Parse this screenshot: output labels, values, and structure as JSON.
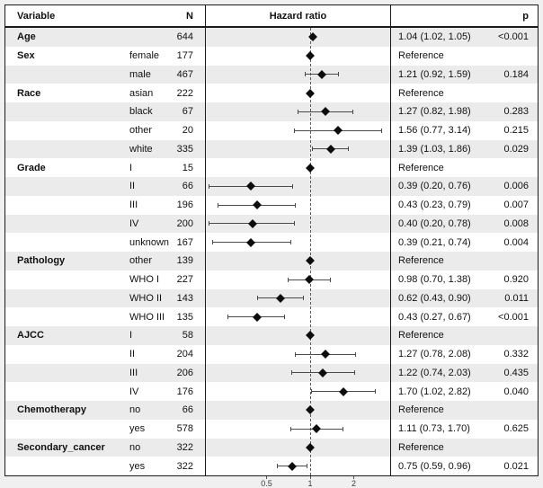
{
  "figure": {
    "background_color": "#f0f0f0",
    "stripe_color": "#ebebeb",
    "border_color": "#1a1a1a",
    "marker_color": "#0d0d0d",
    "whisker_color": "#4a4a4a",
    "refline_color": "#5a5a5a"
  },
  "table": {
    "headers": {
      "variable": "Variable",
      "n": "N",
      "hazard_ratio": "Hazard ratio",
      "p": "p"
    }
  },
  "chart_data": {
    "type": "scatter",
    "variant": "forest-plot",
    "title": "Hazard ratio",
    "x_scale": "log2",
    "x_ticks": [
      "0.5",
      "1",
      "2"
    ],
    "x_tick_values": [
      0.5,
      1,
      2
    ],
    "x_range": [
      0.19,
      3.5
    ],
    "reference_line_x": 1,
    "grid": false,
    "rows": [
      {
        "variable": "Age",
        "subgroup": "",
        "n": "644",
        "hr": 1.04,
        "ci_low": 1.02,
        "ci_high": 1.05,
        "hr_text": "1.04 (1.02, 1.05)",
        "p_text": "<0.001",
        "reference": false
      },
      {
        "variable": "Sex",
        "subgroup": "female",
        "n": "177",
        "hr": 1.0,
        "ci_low": null,
        "ci_high": null,
        "hr_text": "Reference",
        "p_text": "",
        "reference": true
      },
      {
        "variable": "",
        "subgroup": "male",
        "n": "467",
        "hr": 1.21,
        "ci_low": 0.92,
        "ci_high": 1.59,
        "hr_text": "1.21 (0.92, 1.59)",
        "p_text": "0.184",
        "reference": false
      },
      {
        "variable": "Race",
        "subgroup": "asian",
        "n": "222",
        "hr": 1.0,
        "ci_low": null,
        "ci_high": null,
        "hr_text": "Reference",
        "p_text": "",
        "reference": true
      },
      {
        "variable": "",
        "subgroup": "black",
        "n": "67",
        "hr": 1.27,
        "ci_low": 0.82,
        "ci_high": 1.98,
        "hr_text": "1.27 (0.82, 1.98)",
        "p_text": "0.283",
        "reference": false
      },
      {
        "variable": "",
        "subgroup": "other",
        "n": "20",
        "hr": 1.56,
        "ci_low": 0.77,
        "ci_high": 3.14,
        "hr_text": "1.56 (0.77, 3.14)",
        "p_text": "0.215",
        "reference": false
      },
      {
        "variable": "",
        "subgroup": "white",
        "n": "335",
        "hr": 1.39,
        "ci_low": 1.03,
        "ci_high": 1.86,
        "hr_text": "1.39 (1.03, 1.86)",
        "p_text": "0.029",
        "reference": false
      },
      {
        "variable": "Grade",
        "subgroup": "I",
        "n": "15",
        "hr": 1.0,
        "ci_low": null,
        "ci_high": null,
        "hr_text": "Reference",
        "p_text": "",
        "reference": true
      },
      {
        "variable": "",
        "subgroup": "II",
        "n": "66",
        "hr": 0.39,
        "ci_low": 0.2,
        "ci_high": 0.76,
        "hr_text": "0.39 (0.20, 0.76)",
        "p_text": "0.006",
        "reference": false
      },
      {
        "variable": "",
        "subgroup": "III",
        "n": "196",
        "hr": 0.43,
        "ci_low": 0.23,
        "ci_high": 0.79,
        "hr_text": "0.43 (0.23, 0.79)",
        "p_text": "0.007",
        "reference": false
      },
      {
        "variable": "",
        "subgroup": "IV",
        "n": "200",
        "hr": 0.4,
        "ci_low": 0.2,
        "ci_high": 0.78,
        "hr_text": "0.40 (0.20, 0.78)",
        "p_text": "0.008",
        "reference": false
      },
      {
        "variable": "",
        "subgroup": "unknown",
        "n": "167",
        "hr": 0.39,
        "ci_low": 0.21,
        "ci_high": 0.74,
        "hr_text": "0.39 (0.21, 0.74)",
        "p_text": "0.004",
        "reference": false
      },
      {
        "variable": "Pathology",
        "subgroup": "other",
        "n": "139",
        "hr": 1.0,
        "ci_low": null,
        "ci_high": null,
        "hr_text": "Reference",
        "p_text": "",
        "reference": true
      },
      {
        "variable": "",
        "subgroup": "WHO I",
        "n": "227",
        "hr": 0.98,
        "ci_low": 0.7,
        "ci_high": 1.38,
        "hr_text": "0.98 (0.70, 1.38)",
        "p_text": "0.920",
        "reference": false
      },
      {
        "variable": "",
        "subgroup": "WHO II",
        "n": "143",
        "hr": 0.62,
        "ci_low": 0.43,
        "ci_high": 0.9,
        "hr_text": "0.62 (0.43, 0.90)",
        "p_text": "0.011",
        "reference": false
      },
      {
        "variable": "",
        "subgroup": "WHO III",
        "n": "135",
        "hr": 0.43,
        "ci_low": 0.27,
        "ci_high": 0.67,
        "hr_text": "0.43 (0.27, 0.67)",
        "p_text": "<0.001",
        "reference": false
      },
      {
        "variable": "AJCC",
        "subgroup": "I",
        "n": "58",
        "hr": 1.0,
        "ci_low": null,
        "ci_high": null,
        "hr_text": "Reference",
        "p_text": "",
        "reference": true
      },
      {
        "variable": "",
        "subgroup": "II",
        "n": "204",
        "hr": 1.27,
        "ci_low": 0.78,
        "ci_high": 2.08,
        "hr_text": "1.27 (0.78, 2.08)",
        "p_text": "0.332",
        "reference": false
      },
      {
        "variable": "",
        "subgroup": "III",
        "n": "206",
        "hr": 1.22,
        "ci_low": 0.74,
        "ci_high": 2.03,
        "hr_text": "1.22 (0.74, 2.03)",
        "p_text": "0.435",
        "reference": false
      },
      {
        "variable": "",
        "subgroup": "IV",
        "n": "176",
        "hr": 1.7,
        "ci_low": 1.02,
        "ci_high": 2.82,
        "hr_text": "1.70 (1.02, 2.82)",
        "p_text": "0.040",
        "reference": false
      },
      {
        "variable": "Chemotherapy",
        "subgroup": "no",
        "n": "66",
        "hr": 1.0,
        "ci_low": null,
        "ci_high": null,
        "hr_text": "Reference",
        "p_text": "",
        "reference": true
      },
      {
        "variable": "",
        "subgroup": "yes",
        "n": "578",
        "hr": 1.11,
        "ci_low": 0.73,
        "ci_high": 1.7,
        "hr_text": "1.11 (0.73, 1.70)",
        "p_text": "0.625",
        "reference": false
      },
      {
        "variable": "Secondary_cancer",
        "subgroup": "no",
        "n": "322",
        "hr": 1.0,
        "ci_low": null,
        "ci_high": null,
        "hr_text": "Reference",
        "p_text": "",
        "reference": true
      },
      {
        "variable": "",
        "subgroup": "yes",
        "n": "322",
        "hr": 0.75,
        "ci_low": 0.59,
        "ci_high": 0.96,
        "hr_text": "0.75 (0.59, 0.96)",
        "p_text": "0.021",
        "reference": false
      }
    ]
  }
}
